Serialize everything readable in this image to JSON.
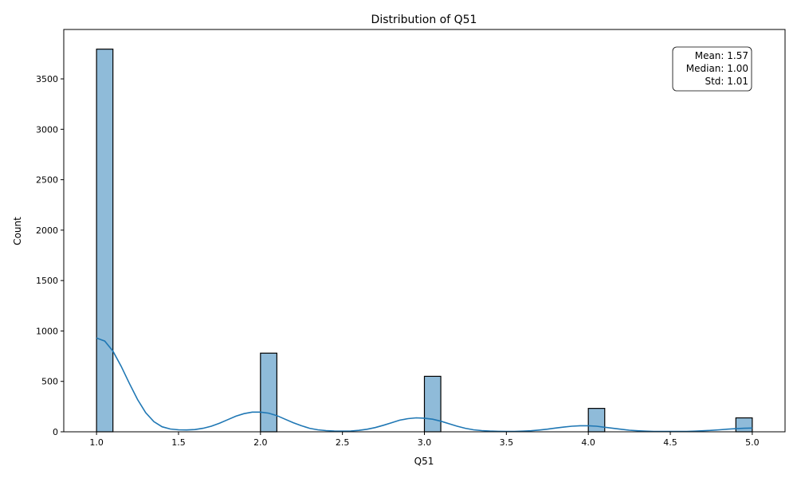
{
  "chart_data": {
    "type": "bar",
    "title": "Distribution of Q51",
    "xlabel": "Q51",
    "ylabel": "Count",
    "xlim": [
      0.8,
      5.2
    ],
    "ylim": [
      0,
      3990
    ],
    "xticks": [
      "1.0",
      "1.5",
      "2.0",
      "2.5",
      "3.0",
      "3.5",
      "4.0",
      "4.5",
      "5.0"
    ],
    "yticks": [
      "0",
      "500",
      "1000",
      "1500",
      "2000",
      "2500",
      "3000",
      "3500"
    ],
    "grid": false,
    "bins": [
      {
        "x0": 1.0,
        "x1": 1.1,
        "count": 3795
      },
      {
        "x0": 2.0,
        "x1": 2.1,
        "count": 780
      },
      {
        "x0": 3.0,
        "x1": 3.1,
        "count": 550
      },
      {
        "x0": 4.0,
        "x1": 4.1,
        "count": 232
      },
      {
        "x0": 4.9,
        "x1": 5.0,
        "count": 138
      }
    ],
    "kde": {
      "name": "",
      "x": [
        1.0,
        1.05,
        1.1,
        1.15,
        1.2,
        1.25,
        1.3,
        1.35,
        1.4,
        1.45,
        1.5,
        1.55,
        1.6,
        1.65,
        1.7,
        1.75,
        1.8,
        1.85,
        1.9,
        1.95,
        2.0,
        2.05,
        2.1,
        2.15,
        2.2,
        2.25,
        2.3,
        2.35,
        2.4,
        2.45,
        2.5,
        2.55,
        2.6,
        2.65,
        2.7,
        2.75,
        2.8,
        2.85,
        2.9,
        2.95,
        3.0,
        3.05,
        3.1,
        3.15,
        3.2,
        3.25,
        3.3,
        3.35,
        3.4,
        3.45,
        3.5,
        3.55,
        3.6,
        3.65,
        3.7,
        3.75,
        3.8,
        3.85,
        3.9,
        3.95,
        4.0,
        4.05,
        4.1,
        4.15,
        4.2,
        4.25,
        4.3,
        4.35,
        4.4,
        4.45,
        4.5,
        4.55,
        4.6,
        4.65,
        4.7,
        4.75,
        4.8,
        4.85,
        4.9,
        4.95,
        5.0
      ],
      "y": [
        930,
        900,
        800,
        650,
        480,
        320,
        190,
        100,
        50,
        28,
        20,
        18,
        22,
        35,
        55,
        85,
        120,
        155,
        180,
        195,
        195,
        185,
        160,
        125,
        90,
        60,
        35,
        20,
        12,
        8,
        6,
        8,
        14,
        25,
        42,
        65,
        90,
        115,
        130,
        138,
        135,
        125,
        105,
        80,
        55,
        35,
        20,
        12,
        7,
        5,
        4,
        4,
        6,
        10,
        17,
        26,
        37,
        47,
        55,
        60,
        60,
        55,
        45,
        35,
        25,
        16,
        10,
        6,
        4,
        3,
        3,
        3,
        4,
        6,
        10,
        14,
        20,
        26,
        31,
        35,
        37
      ],
      "color": "#1f77b4"
    },
    "bar_color": "#1f77b4",
    "bar_edge": "#000000",
    "stats": {
      "mean": "Mean: 1.57",
      "median": "Median: 1.00",
      "std": "Std: 1.01",
      "placement": "top-right"
    }
  }
}
